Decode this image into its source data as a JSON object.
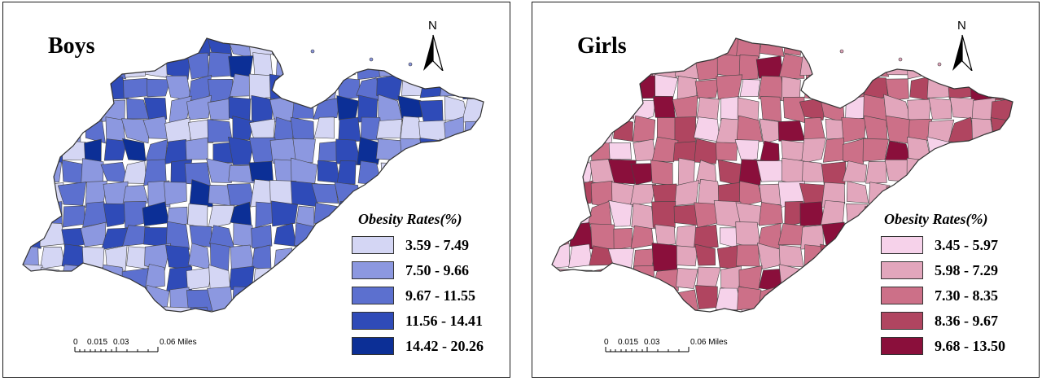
{
  "panels": [
    {
      "title": "Boys",
      "north_label": "N",
      "legend_title": "Obesity Rates(%)",
      "legend": [
        {
          "label": "3.59 - 7.49",
          "color": "#d4d6f4"
        },
        {
          "label": "7.50 - 9.66",
          "color": "#8c98e0"
        },
        {
          "label": "9.67 - 11.55",
          "color": "#5c70cf"
        },
        {
          "label": "11.56 - 14.41",
          "color": "#2f4bb8"
        },
        {
          "label": "14.42 - 20.26",
          "color": "#0c2f96"
        }
      ],
      "scale_labels": [
        "0",
        "0.015",
        "0.03",
        "0.06 Miles"
      ]
    },
    {
      "title": "Girls",
      "north_label": "N",
      "legend_title": "Obesity Rates(%)",
      "legend": [
        {
          "label": "3.45 - 5.97",
          "color": "#f6d2ea"
        },
        {
          "label": "5.98 - 7.29",
          "color": "#e2a6bc"
        },
        {
          "label": "7.30 - 8.35",
          "color": "#cc7088"
        },
        {
          "label": "8.36 - 9.67",
          "color": "#b04560"
        },
        {
          "label": "9.68 - 13.50",
          "color": "#8a0f3b"
        }
      ],
      "scale_labels": [
        "0",
        "0.015",
        "0.03",
        "0.06 Miles"
      ]
    }
  ]
}
